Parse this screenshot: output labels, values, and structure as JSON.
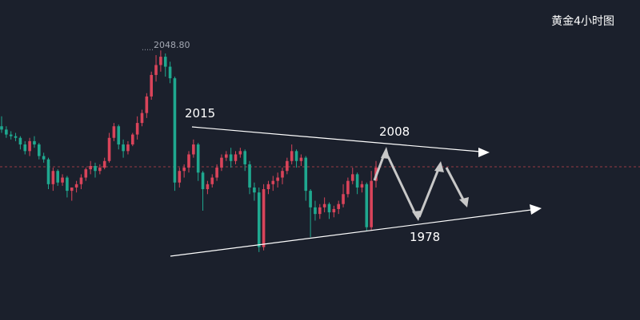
{
  "title": "黄金4小时图",
  "colors": {
    "background": "#1b202c",
    "up": "#d9445a",
    "down": "#1fa88f",
    "annotation": "#ffffff",
    "arrow": "#c8c8c8",
    "price_line": "#9a3a45"
  },
  "chart_data": {
    "type": "candlestick",
    "annotations": {
      "high_label": "2048.80",
      "resistance_label": "2015",
      "target_upper_label": "2008",
      "target_lower_label": "1978"
    },
    "candles": [
      {
        "o": 2003,
        "h": 2009,
        "c": 2001,
        "l": 1999
      },
      {
        "o": 2001,
        "h": 2003,
        "c": 1998,
        "l": 1996
      },
      {
        "o": 1998,
        "h": 2000,
        "c": 1997,
        "l": 1995
      },
      {
        "o": 1997,
        "h": 1999,
        "c": 1996,
        "l": 1994
      },
      {
        "o": 1996,
        "h": 1997,
        "c": 1992,
        "l": 1989
      },
      {
        "o": 1992,
        "h": 1994,
        "c": 1988,
        "l": 1986
      },
      {
        "o": 1988,
        "h": 1996,
        "c": 1994,
        "l": 1985
      },
      {
        "o": 1994,
        "h": 1997,
        "c": 1992,
        "l": 1990
      },
      {
        "o": 1992,
        "h": 1993,
        "c": 1985,
        "l": 1983
      },
      {
        "o": 1985,
        "h": 1987,
        "c": 1983,
        "l": 1981
      },
      {
        "o": 1983,
        "h": 1984,
        "c": 1968,
        "l": 1965
      },
      {
        "o": 1968,
        "h": 1978,
        "c": 1976,
        "l": 1964
      },
      {
        "o": 1976,
        "h": 1977,
        "c": 1969,
        "l": 1967
      },
      {
        "o": 1969,
        "h": 1974,
        "c": 1972,
        "l": 1967
      },
      {
        "o": 1972,
        "h": 1973,
        "c": 1964,
        "l": 1960
      },
      {
        "o": 1964,
        "h": 1966,
        "c": 1966,
        "l": 1958
      },
      {
        "o": 1966,
        "h": 1970,
        "c": 1968,
        "l": 1963
      },
      {
        "o": 1968,
        "h": 1974,
        "c": 1972,
        "l": 1965
      },
      {
        "o": 1972,
        "h": 1978,
        "c": 1977,
        "l": 1970
      },
      {
        "o": 1977,
        "h": 1982,
        "c": 1979,
        "l": 1974
      },
      {
        "o": 1979,
        "h": 1981,
        "c": 1976,
        "l": 1972
      },
      {
        "o": 1976,
        "h": 1980,
        "c": 1978,
        "l": 1974
      },
      {
        "o": 1978,
        "h": 1984,
        "c": 1982,
        "l": 1977
      },
      {
        "o": 1982,
        "h": 1999,
        "c": 1996,
        "l": 1981
      },
      {
        "o": 1996,
        "h": 2005,
        "c": 2003,
        "l": 1994
      },
      {
        "o": 2003,
        "h": 2004,
        "c": 1992,
        "l": 1989
      },
      {
        "o": 1992,
        "h": 1995,
        "c": 1988,
        "l": 1984
      },
      {
        "o": 1988,
        "h": 1994,
        "c": 1992,
        "l": 1986
      },
      {
        "o": 1992,
        "h": 1999,
        "c": 1998,
        "l": 1991
      },
      {
        "o": 1998,
        "h": 2009,
        "c": 2005,
        "l": 1995
      },
      {
        "o": 2005,
        "h": 2013,
        "c": 2011,
        "l": 2003
      },
      {
        "o": 2011,
        "h": 2023,
        "c": 2021,
        "l": 2008
      },
      {
        "o": 2021,
        "h": 2036,
        "c": 2034,
        "l": 2019
      },
      {
        "o": 2034,
        "h": 2046,
        "c": 2040,
        "l": 2030
      },
      {
        "o": 2040,
        "h": 2048.8,
        "c": 2045,
        "l": 2036
      },
      {
        "o": 2045,
        "h": 2047,
        "c": 2039,
        "l": 2033
      },
      {
        "o": 2039,
        "h": 2042,
        "c": 2032,
        "l": 2029
      },
      {
        "o": 2032,
        "h": 2033,
        "c": 1969,
        "l": 1964
      },
      {
        "o": 1969,
        "h": 1978,
        "c": 1976,
        "l": 1966
      },
      {
        "o": 1976,
        "h": 1980,
        "c": 1978,
        "l": 1972
      },
      {
        "o": 1978,
        "h": 1988,
        "c": 1986,
        "l": 1975
      },
      {
        "o": 1986,
        "h": 1995,
        "c": 1992,
        "l": 1984
      },
      {
        "o": 1992,
        "h": 1993,
        "c": 1975,
        "l": 1970
      },
      {
        "o": 1975,
        "h": 1976,
        "c": 1965,
        "l": 1952
      },
      {
        "o": 1965,
        "h": 1970,
        "c": 1968,
        "l": 1962
      },
      {
        "o": 1968,
        "h": 1974,
        "c": 1972,
        "l": 1966
      },
      {
        "o": 1972,
        "h": 1980,
        "c": 1978,
        "l": 1970
      },
      {
        "o": 1978,
        "h": 1986,
        "c": 1984,
        "l": 1976
      },
      {
        "o": 1984,
        "h": 1988,
        "c": 1986,
        "l": 1982
      },
      {
        "o": 1986,
        "h": 1990,
        "c": 1982,
        "l": 1978
      },
      {
        "o": 1982,
        "h": 1988,
        "c": 1986,
        "l": 1980
      },
      {
        "o": 1986,
        "h": 1990,
        "c": 1988,
        "l": 1984
      },
      {
        "o": 1988,
        "h": 1989,
        "c": 1980,
        "l": 1976
      },
      {
        "o": 1980,
        "h": 1982,
        "c": 1966,
        "l": 1962
      },
      {
        "o": 1966,
        "h": 1969,
        "c": 1963,
        "l": 1958
      },
      {
        "o": 1963,
        "h": 1966,
        "c": 1930,
        "l": 1927
      },
      {
        "o": 1930,
        "h": 1968,
        "c": 1965,
        "l": 1928
      },
      {
        "o": 1965,
        "h": 1970,
        "c": 1968,
        "l": 1962
      },
      {
        "o": 1968,
        "h": 1973,
        "c": 1970,
        "l": 1964
      },
      {
        "o": 1970,
        "h": 1975,
        "c": 1972,
        "l": 1966
      },
      {
        "o": 1972,
        "h": 1978,
        "c": 1976,
        "l": 1968
      },
      {
        "o": 1976,
        "h": 1984,
        "c": 1982,
        "l": 1974
      },
      {
        "o": 1982,
        "h": 1992,
        "c": 1988,
        "l": 1980
      },
      {
        "o": 1988,
        "h": 1989,
        "c": 1982,
        "l": 1978
      },
      {
        "o": 1982,
        "h": 1986,
        "c": 1984,
        "l": 1979
      },
      {
        "o": 1984,
        "h": 1985,
        "c": 1964,
        "l": 1958
      },
      {
        "o": 1964,
        "h": 1965,
        "c": 1954,
        "l": 1936
      },
      {
        "o": 1954,
        "h": 1958,
        "c": 1950,
        "l": 1946
      },
      {
        "o": 1950,
        "h": 1956,
        "c": 1954,
        "l": 1947
      },
      {
        "o": 1954,
        "h": 1960,
        "c": 1956,
        "l": 1951
      },
      {
        "o": 1956,
        "h": 1957,
        "c": 1951,
        "l": 1947
      },
      {
        "o": 1951,
        "h": 1955,
        "c": 1953,
        "l": 1948
      },
      {
        "o": 1953,
        "h": 1958,
        "c": 1956,
        "l": 1950
      },
      {
        "o": 1956,
        "h": 1968,
        "c": 1962,
        "l": 1954
      },
      {
        "o": 1962,
        "h": 1972,
        "c": 1970,
        "l": 1960
      },
      {
        "o": 1970,
        "h": 1978,
        "c": 1974,
        "l": 1968
      },
      {
        "o": 1974,
        "h": 1975,
        "c": 1966,
        "l": 1962
      },
      {
        "o": 1966,
        "h": 1970,
        "c": 1968,
        "l": 1963
      },
      {
        "o": 1968,
        "h": 1969,
        "c": 1942,
        "l": 1940
      },
      {
        "o": 1942,
        "h": 1976,
        "c": 1970,
        "l": 1940
      },
      {
        "o": 1970,
        "h": 1982,
        "c": 1978,
        "l": 1966
      }
    ],
    "current_price": 1979,
    "y_range": [
      1925,
      2060
    ]
  }
}
